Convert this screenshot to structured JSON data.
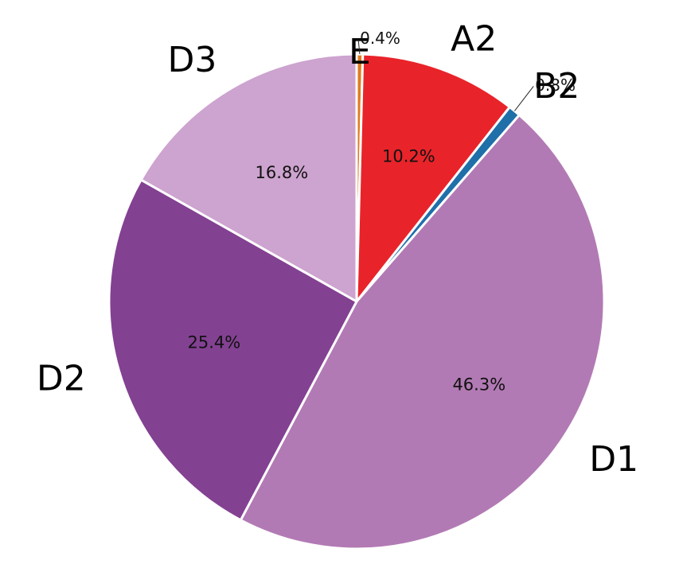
{
  "chart_data": {
    "type": "pie",
    "title": "",
    "start_angle_deg": 90,
    "direction": "clockwise",
    "slices": [
      {
        "label": "E",
        "value": 0.4,
        "pct_text": "0.4%",
        "color": "#e07b1f"
      },
      {
        "label": "A2",
        "value": 10.2,
        "pct_text": "10.2%",
        "color": "#e8242a"
      },
      {
        "label": "B2",
        "value": 0.8,
        "pct_text": "0.8%",
        "color": "#1f6fa9"
      },
      {
        "label": "D1",
        "value": 46.3,
        "pct_text": "46.3%",
        "color": "#b27ab4"
      },
      {
        "label": "D2",
        "value": 25.4,
        "pct_text": "25.4%",
        "color": "#834192"
      },
      {
        "label": "D3",
        "value": 16.8,
        "pct_text": "16.8%",
        "color": "#cda3cf"
      }
    ]
  }
}
